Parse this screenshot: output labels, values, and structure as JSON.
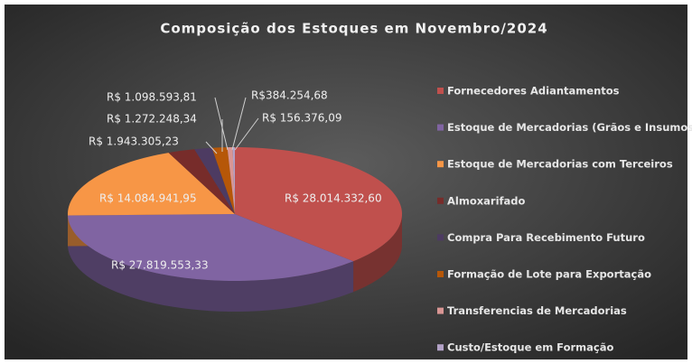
{
  "chart_data": {
    "type": "pie",
    "title": "Composição dos Estoques em Novembro/2024",
    "categories": [
      "Fornecedores Adiantamentos",
      "Estoque de Mercadorias (Grãos e Insumos)",
      "Estoque de Mercadorias com Terceiros",
      "Almoxarifado",
      "Compra Para Recebimento Futuro",
      "Formação de Lote para Exportação",
      "Transferencias de Mercadorias",
      "Custo/Estoque em Formação"
    ],
    "values": [
      28014332.6,
      27819553.33,
      14084941.95,
      1943305.23,
      1272248.34,
      1098593.81,
      384254.68,
      156376.09
    ],
    "value_labels": [
      "R$ 28.014.332,60",
      "R$ 27.819.553,33",
      "R$ 14.084.941,95",
      "R$ 1.943.305,23",
      "R$ 1.272.248,34",
      "R$ 1.098.593,81",
      "R$384.254,68",
      "R$ 156.376,09"
    ],
    "colors": [
      "#c0504d",
      "#8064a2",
      "#f79646",
      "#772c2a",
      "#4d3b62",
      "#b65708",
      "#d99694",
      "#b3a2c7"
    ],
    "legend": "right"
  }
}
